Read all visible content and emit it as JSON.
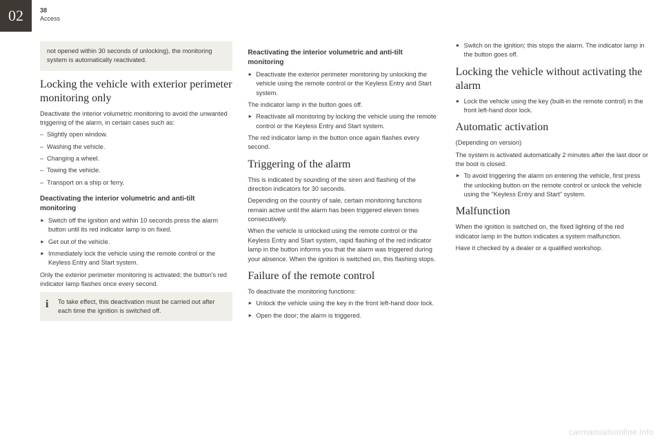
{
  "chapter": "02",
  "page_number": "38",
  "section": "Access",
  "col1": {
    "box1": "not opened within 30 seconds of unlocking), the monitoring system is automatically reactivated.",
    "h2": "Locking the vehicle with exterior perimeter monitoring only",
    "p1": "Deactivate the interior volumetric monitoring to avoid the unwanted triggering of the alarm, in certain cases such as:",
    "b1": "Slightly open window.",
    "b2": "Washing the vehicle.",
    "b3": "Changing a wheel.",
    "b4": "Towing the vehicle.",
    "b5": "Transport on a ship or ferry.",
    "h3": "Deactivating the interior volumetric and anti-tilt monitoring",
    "a1": "Switch off the ignition and within 10 seconds press the alarm button until its red indicator lamp is on fixed.",
    "a2": "Get out of the vehicle.",
    "a3": "Immediately lock the vehicle using the remote control or the Keyless Entry and Start system.",
    "p2": "Only the exterior perimeter monitoring is activated; the button's red indicator lamp flashes once every second.",
    "box2": "To take effect, this deactivation must be carried out after each time the ignition is switched off."
  },
  "col2": {
    "h3a": "Reactivating the interior volumetric and anti-tilt monitoring",
    "a1": "Deactivate the exterior perimeter monitoring by unlocking the vehicle using the remote control or the Keyless Entry and Start system.",
    "p1": "The indicator lamp in the button goes off.",
    "a2": "Reactivate all monitoring by locking the vehicle using the remote control or the Keyless Entry and Start system.",
    "p2": "The red indicator lamp in the button once again flashes every second.",
    "h2a": "Triggering of the alarm",
    "p3": "This is indicated by sounding of the siren and flashing of the direction indicators for 30 seconds.",
    "p4": "Depending on the country of sale, certain monitoring functions remain active until the alarm has been triggered eleven times consecutively.",
    "p5": "When the vehicle is unlocked using the remote control or the Keyless Entry and Start system, rapid flashing of the red indicator lamp in the button informs you that the alarm was triggered during your absence. When the ignition is switched on, this flashing stops.",
    "h2b": "Failure of the remote control",
    "p6": "To deactivate the monitoring functions:",
    "a3": "Unlock the vehicle using the key in the front left-hand door lock.",
    "a4": "Open the door; the alarm is triggered."
  },
  "col3": {
    "a1": "Switch on the ignition; this stops the alarm. The indicator lamp in the button goes off.",
    "h2a": "Locking the vehicle without activating the alarm",
    "a2": "Lock the vehicle using the key (built-in the remote control) in the front left-hand door lock.",
    "h2b": "Automatic activation",
    "p1": "(Depending on version)",
    "p2": "The system is activated automatically 2 minutes after the last door or the boot is closed.",
    "a3": "To avoid triggering the alarm on entering the vehicle, first press the unlocking button on the remote control or unlock the vehicle using the \"Keyless Entry and Start\" system.",
    "h2c": "Malfunction",
    "p3": "When the ignition is switched on, the fixed lighting of the red indicator lamp in the button indicates a system malfunction.",
    "p4": "Have it checked by a dealer or a qualified workshop."
  },
  "watermark": "carmanualsonline.info"
}
